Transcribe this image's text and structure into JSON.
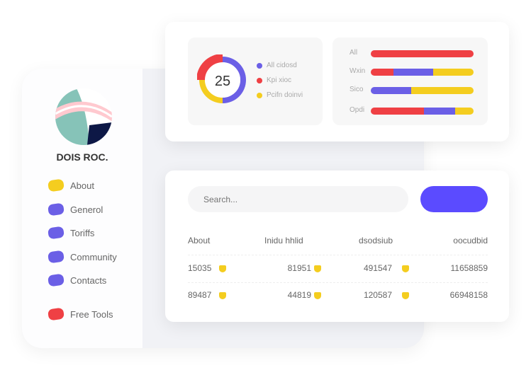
{
  "sidebar": {
    "brand": "DOIS ROC.",
    "items": [
      {
        "label": "About",
        "color": "#f4cd1f"
      },
      {
        "label": "Generol",
        "color": "#6b5fe6"
      },
      {
        "label": "Toriffs",
        "color": "#6b5fe6"
      },
      {
        "label": "Community",
        "color": "#6b5fe6"
      },
      {
        "label": "Contacts",
        "color": "#6b5fe6"
      },
      {
        "label": "Free Tools",
        "color": "#ef4044"
      }
    ]
  },
  "donut": {
    "value": "25",
    "segments": [
      {
        "color": "#6b5fe6",
        "pct": 50
      },
      {
        "color": "#f4cd1f",
        "pct": 25
      },
      {
        "color": "#ef4044",
        "pct": 25
      }
    ],
    "legend": [
      {
        "label": "All cidosd",
        "color": "#6b5fe6"
      },
      {
        "label": "Kpi xioc",
        "color": "#ef4044"
      },
      {
        "label": "Pcifn doinvi",
        "color": "#f4cd1f"
      }
    ]
  },
  "bars": [
    {
      "label": "All",
      "segments": [
        {
          "color": "#ef4044",
          "pct": 100
        }
      ]
    },
    {
      "label": "Wxin",
      "segments": [
        {
          "color": "#ef4044",
          "pct": 22
        },
        {
          "color": "#6b5fe6",
          "pct": 39
        },
        {
          "color": "#f4cd1f",
          "pct": 39
        }
      ]
    },
    {
      "label": "Sico",
      "segments": [
        {
          "color": "#6b5fe6",
          "pct": 39
        },
        {
          "color": "#f4cd1f",
          "pct": 61
        }
      ]
    },
    {
      "label": "Opdi",
      "segments": [
        {
          "color": "#ef4044",
          "pct": 52
        },
        {
          "color": "#6b5fe6",
          "pct": 30
        },
        {
          "color": "#f4cd1f",
          "pct": 18
        }
      ]
    }
  ],
  "search": {
    "placeholder": "Search..."
  },
  "table": {
    "headers": [
      "About",
      "Inidu hhlid",
      "dsodsiub",
      "oocudbid"
    ],
    "rows": [
      [
        "15035",
        "81951",
        "491547",
        "11658859"
      ],
      [
        "89487",
        "44819",
        "120587",
        "66948158"
      ]
    ]
  }
}
